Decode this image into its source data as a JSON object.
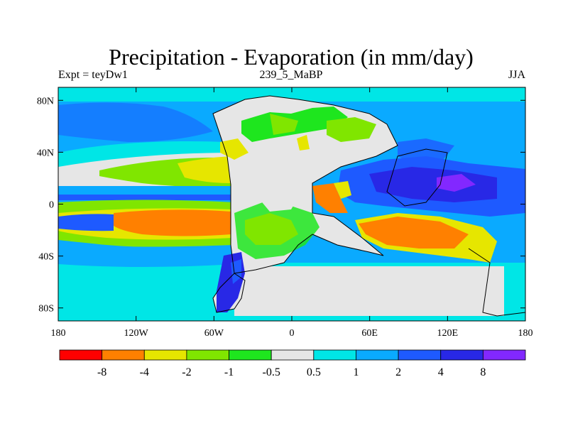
{
  "chart_data": {
    "type": "heatmap",
    "title": "Precipitation - Evaporation (in mm/day)",
    "left_string": "Expt = teyDw1",
    "center_string": "239_5_MaBP",
    "right_string": "JJA",
    "x_ticks": [
      "180",
      "120W",
      "60W",
      "0",
      "60E",
      "120E",
      "180"
    ],
    "y_ticks": [
      "80N",
      "40N",
      "0",
      "40S",
      "80S"
    ],
    "x_range": [
      -180,
      180
    ],
    "y_range": [
      -90,
      90
    ],
    "colorbar": {
      "labels": [
        "-8",
        "-4",
        "-2",
        "-1",
        "-0.5",
        "0.5",
        "1",
        "2",
        "4",
        "8"
      ],
      "colors": [
        "#ff0000",
        "#ff8000",
        "#e6e600",
        "#80e600",
        "#1ee61e",
        "#e6e6e6",
        "#00e6e6",
        "#0aaaff",
        "#1e5aff",
        "#2828e6",
        "#8228ff"
      ]
    }
  }
}
